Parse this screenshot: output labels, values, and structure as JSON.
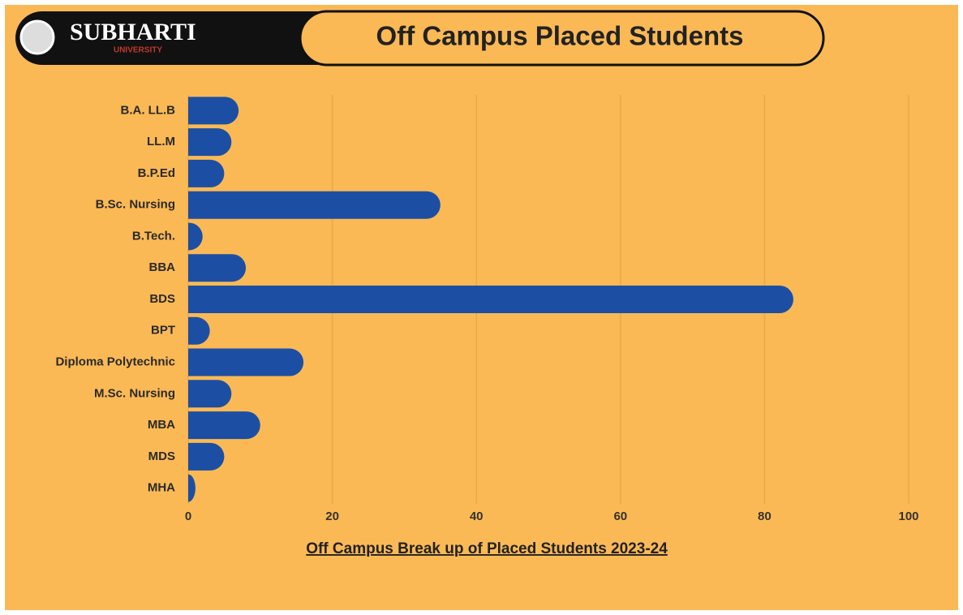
{
  "chart_data": {
    "type": "bar",
    "orientation": "horizontal",
    "title": "Off Campus Placed Students",
    "logo": {
      "name": "SUBHARTI",
      "subtitle": "UNIVERSITY"
    },
    "xlabel": "Off Campus Break up of Placed Students 2023-24",
    "categories": [
      "B.A. LL.B",
      "LL.M",
      "B.P.Ed",
      "B.Sc. Nursing",
      "B.Tech.",
      "BBA",
      "BDS",
      "BPT",
      "Diploma Polytechnic",
      "M.Sc. Nursing",
      "MBA",
      "MDS",
      "MHA"
    ],
    "values": [
      7,
      6,
      5,
      35,
      2,
      8,
      84,
      3,
      16,
      6,
      10,
      5,
      1
    ],
    "color": "#1c4fa3",
    "xlim": [
      0,
      100
    ],
    "xticks": [
      0,
      20,
      40,
      60,
      80,
      100
    ],
    "grid": true
  }
}
